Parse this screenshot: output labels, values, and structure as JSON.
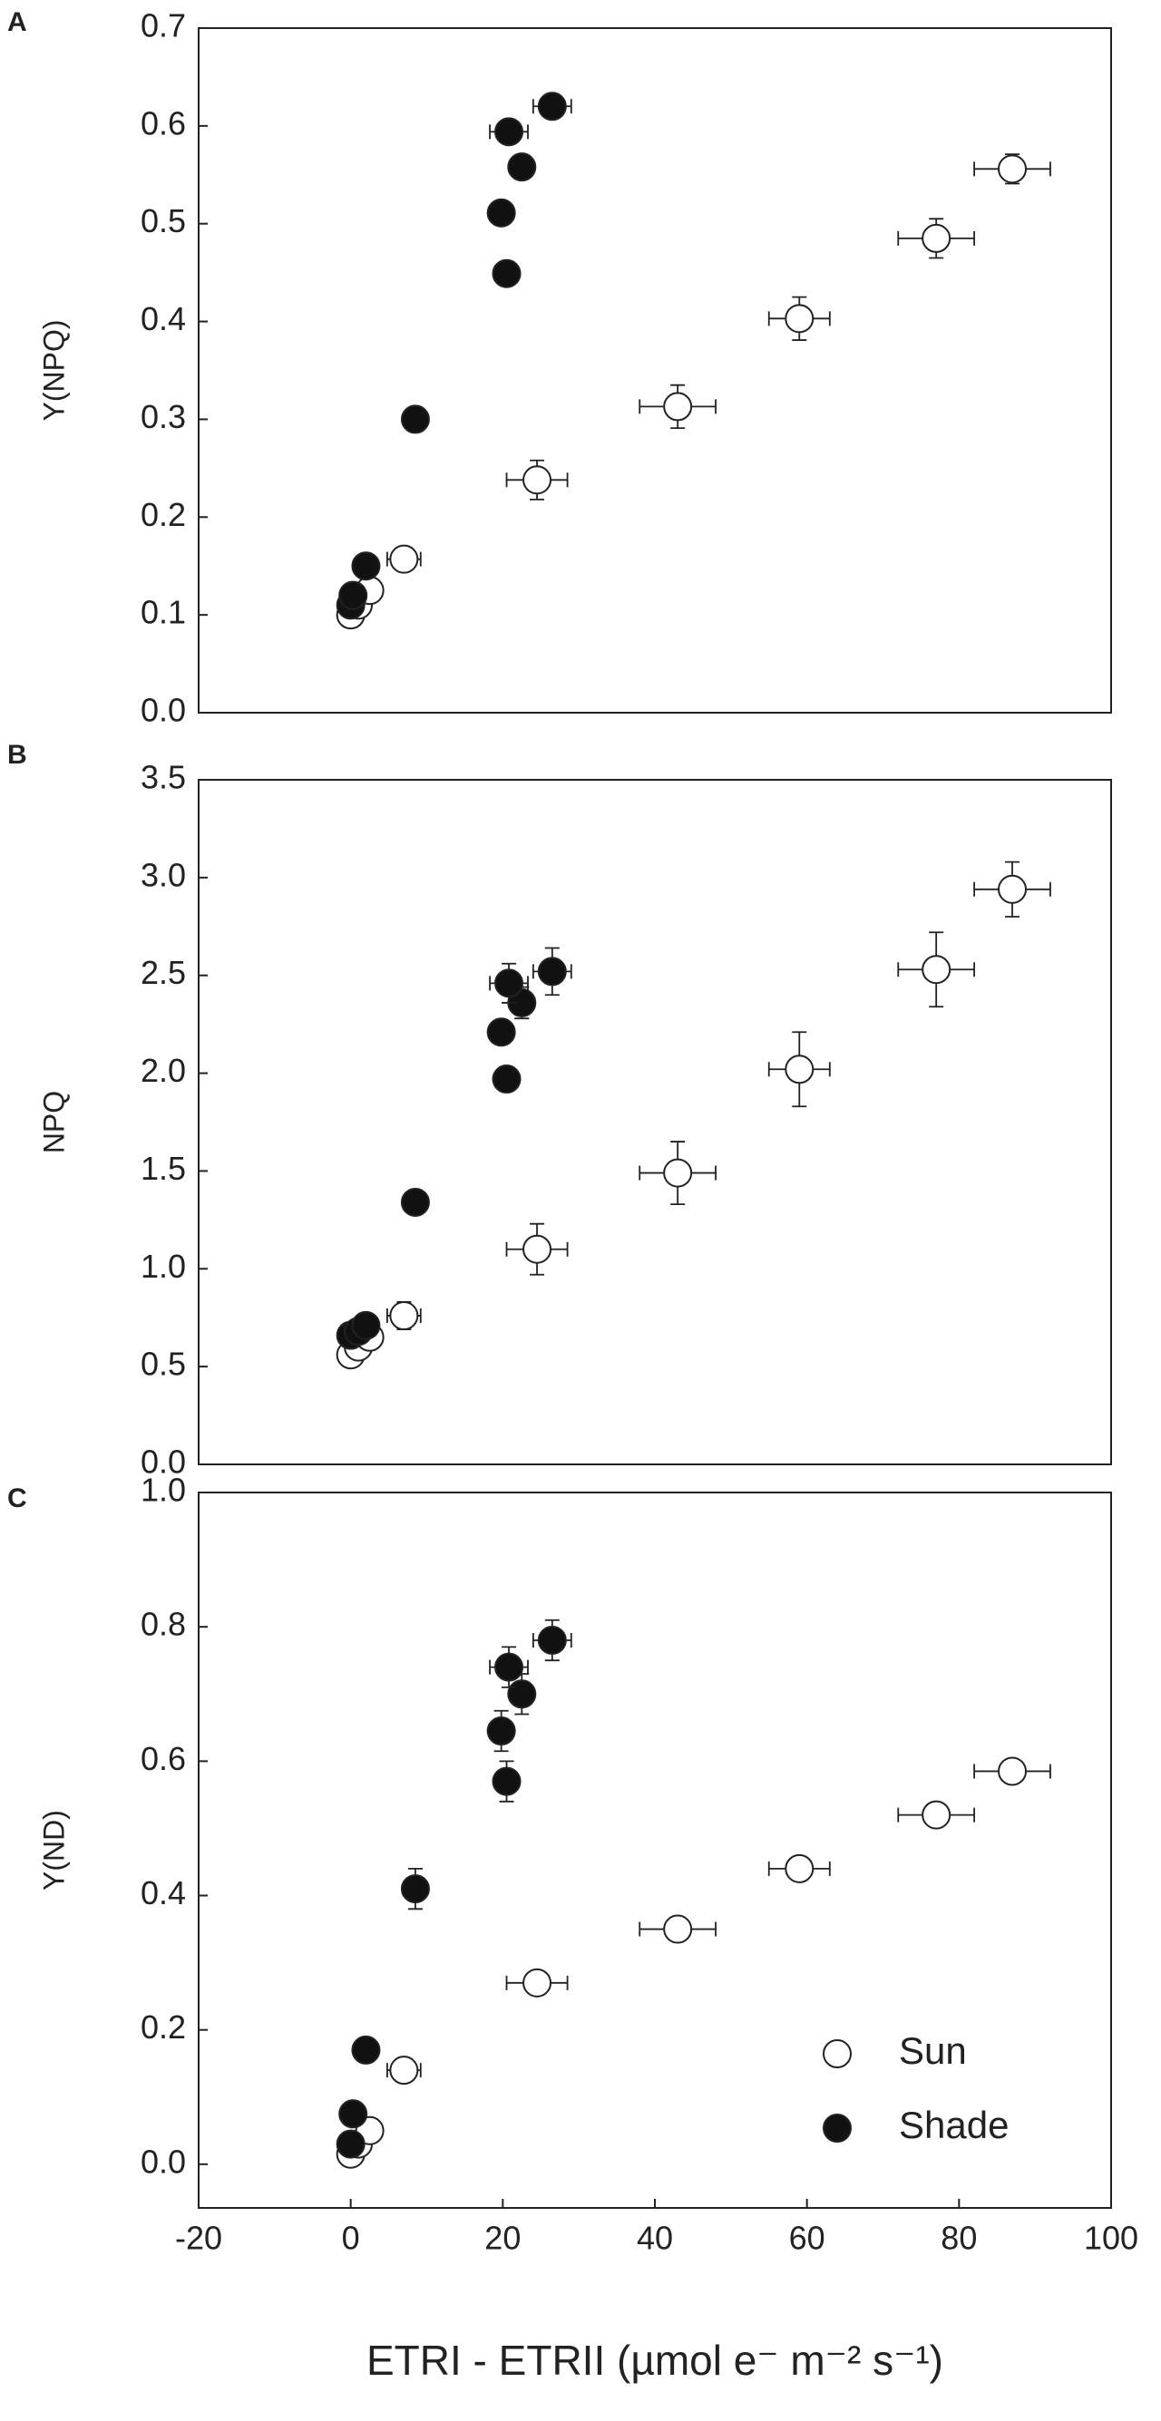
{
  "chart_data": [
    {
      "type": "scatter",
      "panel": "A",
      "ylabel": "Y(NPQ)",
      "xlim": [
        -20,
        100
      ],
      "ylim": [
        0,
        0.7
      ],
      "yticks": [
        {
          "value": 0,
          "label": "0.0"
        },
        {
          "value": 0.1,
          "label": "0.1"
        },
        {
          "value": 0.2,
          "label": "0.2"
        },
        {
          "value": 0.3,
          "label": "0.3"
        },
        {
          "value": 0.4,
          "label": "0.4"
        },
        {
          "value": 0.5,
          "label": "0.5"
        },
        {
          "value": 0.6,
          "label": "0.6"
        },
        {
          "value": 0.7,
          "label": "0.7"
        }
      ],
      "series": [
        {
          "color": "#ffffff",
          "x": [
            0,
            1,
            2.5,
            7,
            24.5,
            43,
            59,
            77,
            87
          ],
          "values": [
            0.1,
            0.11,
            0.125,
            0.157,
            0.238,
            0.313,
            0.403,
            0.485,
            0.556
          ],
          "x_err": [
            0.5,
            0.8,
            1,
            2.2,
            4,
            5,
            4,
            5,
            5
          ],
          "y_err": [
            0.005,
            0.005,
            0.008,
            0.008,
            0.02,
            0.022,
            0.022,
            0.02,
            0.015
          ]
        },
        {
          "color": "#111111",
          "x": [
            0,
            0.3,
            2,
            8.5,
            20.5,
            19.8,
            22.5,
            20.8,
            26.5
          ],
          "values": [
            0.11,
            0.12,
            0.15,
            0.3,
            0.449,
            0.511,
            0.558,
            0.594,
            0.62
          ],
          "x_err": [
            0.3,
            0.4,
            0.5,
            0.8,
            1,
            1,
            1.5,
            2.5,
            2.5
          ],
          "y_err": [
            0.005,
            0.005,
            0.005,
            0.008,
            0.008,
            0.008,
            0.008,
            0.008,
            0.008
          ]
        }
      ]
    },
    {
      "type": "scatter",
      "panel": "B",
      "ylabel": "NPQ",
      "xlim": [
        -20,
        100
      ],
      "ylim": [
        0,
        3.5
      ],
      "yticks": [
        {
          "value": 0,
          "label": "0.0"
        },
        {
          "value": 0.5,
          "label": "0.5"
        },
        {
          "value": 1,
          "label": "1.0"
        },
        {
          "value": 1.5,
          "label": "1.5"
        },
        {
          "value": 2,
          "label": "2.0"
        },
        {
          "value": 2.5,
          "label": "2.5"
        },
        {
          "value": 3,
          "label": "3.0"
        },
        {
          "value": 3.5,
          "label": "3.5"
        }
      ],
      "series": [
        {
          "color": "#ffffff",
          "x": [
            0,
            1,
            2.5,
            7,
            24.5,
            43,
            59,
            77,
            87
          ],
          "values": [
            0.56,
            0.6,
            0.65,
            0.76,
            1.1,
            1.49,
            2.02,
            2.53,
            2.94
          ],
          "x_err": [
            0.5,
            0.8,
            1,
            2.2,
            4,
            5,
            4,
            5,
            5
          ],
          "y_err": [
            0.03,
            0.03,
            0.04,
            0.07,
            0.13,
            0.16,
            0.19,
            0.19,
            0.14
          ]
        },
        {
          "color": "#111111",
          "x": [
            0,
            1,
            2,
            8.5,
            20.5,
            19.8,
            22.5,
            20.8,
            26.5
          ],
          "values": [
            0.66,
            0.68,
            0.71,
            1.34,
            1.97,
            2.21,
            2.36,
            2.46,
            2.52
          ],
          "x_err": [
            0.3,
            0.4,
            0.5,
            0.8,
            1,
            1,
            1.5,
            2.5,
            2.5
          ],
          "y_err": [
            0.02,
            0.02,
            0.02,
            0.04,
            0.04,
            0.05,
            0.08,
            0.1,
            0.12
          ]
        }
      ]
    },
    {
      "type": "scatter",
      "panel": "C",
      "ylabel": "Y(ND)",
      "xlabel": "ETRI - ETRII (µmol e⁻ m⁻² s⁻¹)",
      "legend": "lower right",
      "xlim": [
        -20,
        100
      ],
      "xticks": [
        -20,
        0,
        20,
        40,
        60,
        80,
        100
      ],
      "ylim": [
        -0.065,
        1
      ],
      "yticks": [
        {
          "value": 0,
          "label": "0.0"
        },
        {
          "value": 0.2,
          "label": "0.2"
        },
        {
          "value": 0.4,
          "label": "0.4"
        },
        {
          "value": 0.6,
          "label": "0.6"
        },
        {
          "value": 0.8,
          "label": "0.8"
        },
        {
          "value": 1,
          "label": "1.0"
        }
      ],
      "series": [
        {
          "name": "Sun",
          "color": "#ffffff",
          "x": [
            0,
            1,
            2.5,
            7,
            24.5,
            43,
            59,
            77,
            87
          ],
          "values": [
            0.015,
            0.03,
            0.05,
            0.14,
            0.27,
            0.35,
            0.44,
            0.52,
            0.585
          ],
          "x_err": [
            0.5,
            0.8,
            1,
            2.2,
            4,
            5,
            4,
            5,
            5
          ],
          "y_err": [
            0.005,
            0.005,
            0.01,
            0.01,
            0.01,
            0.01,
            0.01,
            0.01,
            0.01
          ]
        },
        {
          "name": "Shade",
          "color": "#111111",
          "x": [
            0,
            0.3,
            2,
            8.5,
            20.5,
            19.8,
            22.5,
            20.8,
            26.5
          ],
          "values": [
            0.03,
            0.075,
            0.17,
            0.41,
            0.57,
            0.645,
            0.7,
            0.74,
            0.78
          ],
          "x_err": [
            0.3,
            0.4,
            0.5,
            0.8,
            1,
            1,
            1.5,
            2.5,
            2.5
          ],
          "y_err": [
            0.005,
            0.005,
            0.01,
            0.03,
            0.03,
            0.03,
            0.03,
            0.03,
            0.03
          ]
        }
      ]
    }
  ]
}
